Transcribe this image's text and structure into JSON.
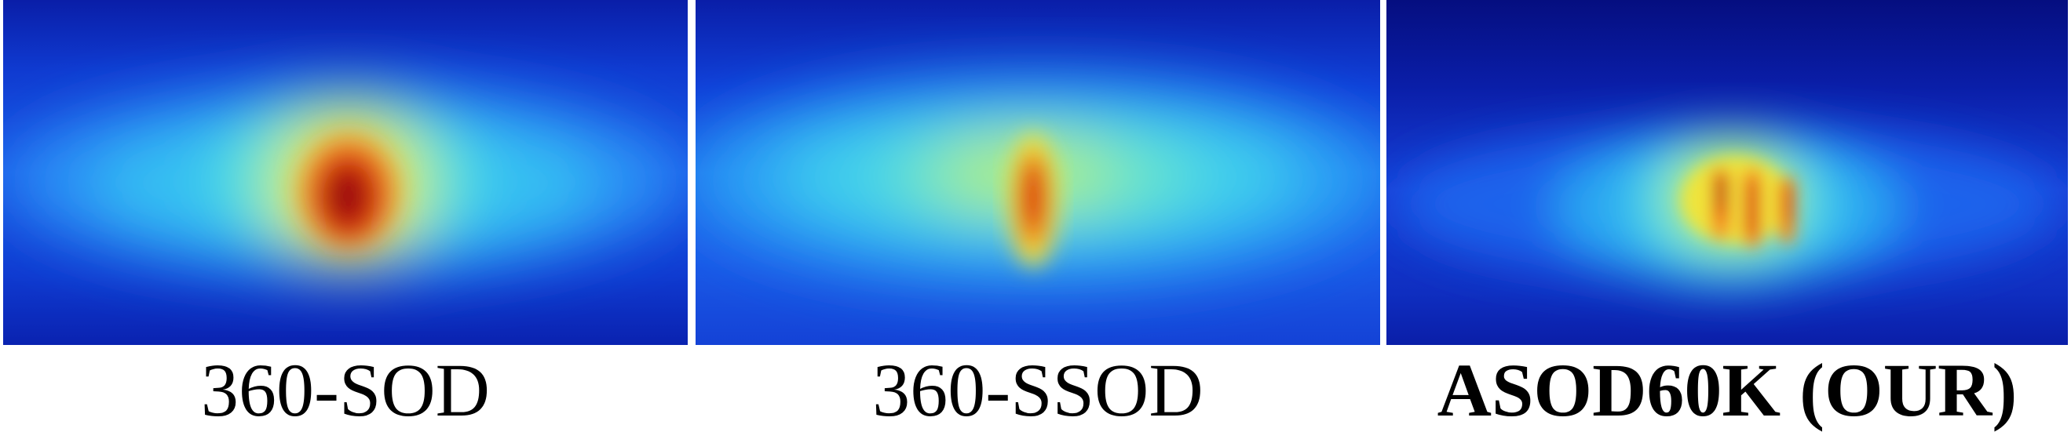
{
  "panels": [
    {
      "id": "p1",
      "caption": "360-SOD",
      "bold": false,
      "colormap": "jet"
    },
    {
      "id": "p2",
      "caption": "360-SSOD",
      "bold": false,
      "colormap": "jet"
    },
    {
      "id": "p3",
      "caption": "ASOD60K (OUR)",
      "bold": true,
      "colormap": "jet"
    }
  ],
  "colors": {
    "low": "#0a1ea8",
    "mid_low": "#1e6cf0",
    "mid": "#34d8f0",
    "mid_high": "#f0e640",
    "high": "#e02010",
    "peak": "#9a0a0a"
  }
}
